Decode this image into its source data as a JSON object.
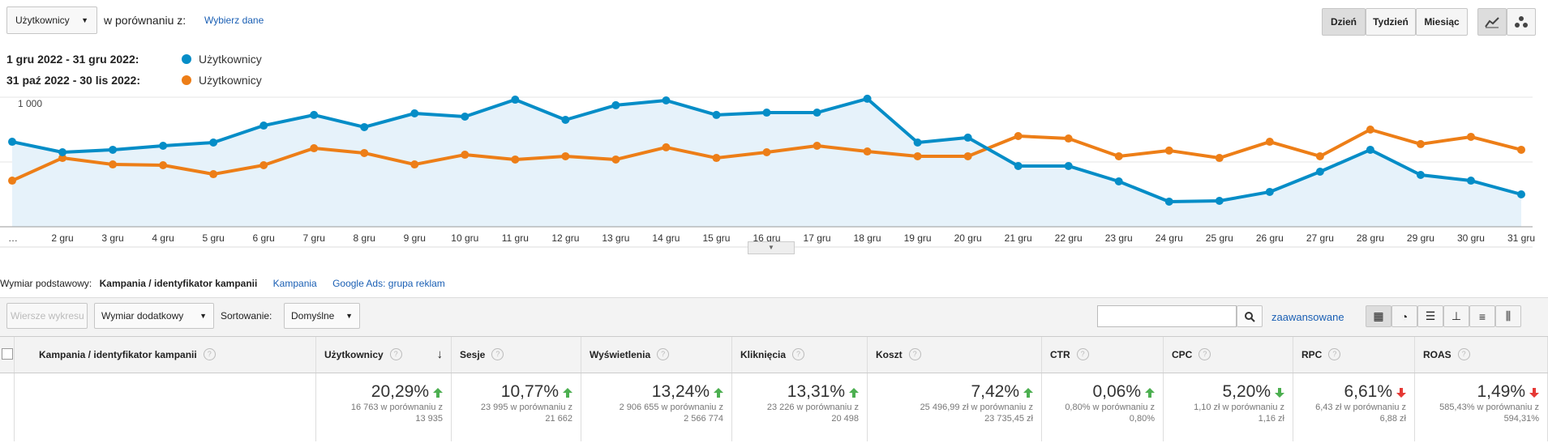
{
  "controls": {
    "metric": "Użytkownicy",
    "compare_label": "w porównaniu z:",
    "choose": "Wybierz dane",
    "periods": [
      "Dzień",
      "Tydzień",
      "Miesiąc"
    ]
  },
  "chart_data": {
    "type": "line",
    "categories": [
      "…",
      "2 gru",
      "3 gru",
      "4 gru",
      "5 gru",
      "6 gru",
      "7 gru",
      "8 gru",
      "9 gru",
      "10 gru",
      "11 gru",
      "12 gru",
      "13 gru",
      "14 gru",
      "15 gru",
      "16 gru",
      "17 gru",
      "18 gru",
      "19 gru",
      "20 gru",
      "21 gru",
      "22 gru",
      "23 gru",
      "24 gru",
      "25 gru",
      "26 gru",
      "27 gru",
      "28 gru",
      "29 gru",
      "30 gru",
      "31 gru"
    ],
    "series": [
      {
        "name": "Użytkownicy",
        "period": "1 gru 2022 - 31 gru 2022:",
        "color": "#058dc7",
        "area": true,
        "values": [
          656,
          575,
          594,
          625,
          650,
          781,
          863,
          769,
          875,
          850,
          981,
          825,
          938,
          975,
          863,
          881,
          881,
          988,
          650,
          688,
          469,
          469,
          350,
          194,
          200,
          269,
          425,
          594,
          400,
          356,
          250
        ]
      },
      {
        "name": "Użytkownicy",
        "period": "31 paź 2022 - 30 lis 2022:",
        "color": "#ed7e17",
        "area": false,
        "values": [
          356,
          531,
          481,
          475,
          406,
          475,
          606,
          569,
          481,
          556,
          519,
          544,
          519,
          613,
          531,
          575,
          625,
          581,
          544,
          544,
          700,
          681,
          544,
          588,
          531,
          656,
          544,
          750,
          638,
          694,
          594
        ]
      }
    ],
    "ylim": [
      0,
      1000
    ],
    "yticks": [
      500,
      {
        "value": 1000,
        "label": "1 000"
      }
    ],
    "grid": true
  },
  "dimension_bar": {
    "label": "Wymiar podstawowy:",
    "active": "Kampania / identyfikator kampanii",
    "links": [
      "Kampania",
      "Google Ads: grupa reklam"
    ]
  },
  "toolbar": {
    "plot_rows": "Wiersze wykresu",
    "secondary": "Wymiar dodatkowy",
    "sort_label": "Sortowanie:",
    "sort": "Domyślne",
    "advanced": "zaawansowane"
  },
  "table": {
    "columns": [
      "Kampania / identyfikator kampanii",
      "Użytkownicy",
      "Sesje",
      "Wyświetlenia",
      "Kliknięcia",
      "Koszt",
      "CTR",
      "CPC",
      "RPC",
      "ROAS"
    ],
    "totals": [
      {
        "change": "20,29%",
        "line1": "16 763 w porównaniu z",
        "line2": "13 935",
        "arrow": "up",
        "arrow_color": "#4caf50"
      },
      {
        "change": "10,77%",
        "line1": "23 995 w porównaniu z",
        "line2": "21 662",
        "arrow": "up",
        "arrow_color": "#4caf50"
      },
      {
        "change": "13,24%",
        "line1": "2 906 655 w porównaniu z",
        "line2": "2 566 774",
        "arrow": "up",
        "arrow_color": "#4caf50"
      },
      {
        "change": "13,31%",
        "line1": "23 226 w porównaniu z",
        "line2": "20 498",
        "arrow": "up",
        "arrow_color": "#4caf50"
      },
      {
        "change": "7,42%",
        "line1": "25 496,99 zł w porównaniu z",
        "line2": "23 735,45 zł",
        "arrow": "up",
        "arrow_color": "#4caf50"
      },
      {
        "change": "0,06%",
        "line1": "0,80% w porównaniu z",
        "line2": "0,80%",
        "arrow": "up",
        "arrow_color": "#4caf50"
      },
      {
        "change": "5,20%",
        "line1": "1,10 zł w porównaniu z",
        "line2": "1,16 zł",
        "arrow": "down",
        "arrow_color": "#4caf50"
      },
      {
        "change": "6,61%",
        "line1": "6,43 zł w porównaniu z",
        "line2": "6,88 zł",
        "arrow": "down",
        "arrow_color": "#e53935"
      },
      {
        "change": "1,49%",
        "line1": "585,43% w porównaniu z",
        "line2": "594,31%",
        "arrow": "down",
        "arrow_color": "#e53935"
      }
    ]
  }
}
